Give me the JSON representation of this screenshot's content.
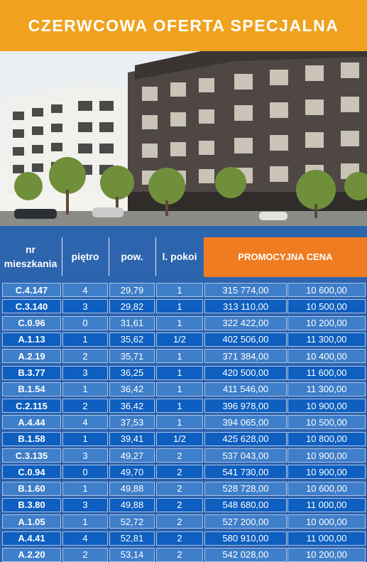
{
  "banner": {
    "title": "CZERWCOWA OFERTA SPECJALNA"
  },
  "colors": {
    "banner": "#f0a21e",
    "promo": "#f07c22",
    "table_bg": "#2a5ea8",
    "row_light": "#3f7ec9",
    "row_dark": "#0e5fbf"
  },
  "photo": {
    "description_icon": "building-photo"
  },
  "table": {
    "headers": {
      "nr_line1": "nr",
      "nr_line2": "mieszkania",
      "floor": "piętro",
      "area": "pow.",
      "rooms": "l. pokoi",
      "promo_price": "PROMOCYJNA CENA"
    },
    "rows": [
      {
        "nr": "C.4.147",
        "floor": "4",
        "area": "29,79",
        "rooms": "1",
        "price": "315 774,00",
        "price_m2": "10 600,00"
      },
      {
        "nr": "C.3.140",
        "floor": "3",
        "area": "29,82",
        "rooms": "1",
        "price": "313 110,00",
        "price_m2": "10 500,00"
      },
      {
        "nr": "C.0.96",
        "floor": "0",
        "area": "31,61",
        "rooms": "1",
        "price": "322 422,00",
        "price_m2": "10 200,00"
      },
      {
        "nr": "A.1.13",
        "floor": "1",
        "area": "35,62",
        "rooms": "1/2",
        "price": "402 506,00",
        "price_m2": "11 300,00"
      },
      {
        "nr": "A.2.19",
        "floor": "2",
        "area": "35,71",
        "rooms": "1",
        "price": "371 384,00",
        "price_m2": "10 400,00"
      },
      {
        "nr": "B.3.77",
        "floor": "3",
        "area": "36,25",
        "rooms": "1",
        "price": "420 500,00",
        "price_m2": "11 600,00"
      },
      {
        "nr": "B.1.54",
        "floor": "1",
        "area": "36,42",
        "rooms": "1",
        "price": "411 546,00",
        "price_m2": "11 300,00"
      },
      {
        "nr": "C.2.115",
        "floor": "2",
        "area": "36,42",
        "rooms": "1",
        "price": "396 978,00",
        "price_m2": "10 900,00"
      },
      {
        "nr": "A.4.44",
        "floor": "4",
        "area": "37,53",
        "rooms": "1",
        "price": "394 065,00",
        "price_m2": "10 500,00"
      },
      {
        "nr": "B.1.58",
        "floor": "1",
        "area": "39,41",
        "rooms": "1/2",
        "price": "425 628,00",
        "price_m2": "10 800,00"
      },
      {
        "nr": "C.3.135",
        "floor": "3",
        "area": "49,27",
        "rooms": "2",
        "price": "537 043,00",
        "price_m2": "10 900,00"
      },
      {
        "nr": "C.0.94",
        "floor": "0",
        "area": "49,70",
        "rooms": "2",
        "price": "541 730,00",
        "price_m2": "10 900,00"
      },
      {
        "nr": "B.1.60",
        "floor": "1",
        "area": "49,88",
        "rooms": "2",
        "price": "528 728,00",
        "price_m2": "10 600,00"
      },
      {
        "nr": "B.3.80",
        "floor": "3",
        "area": "49,88",
        "rooms": "2",
        "price": "548 680,00",
        "price_m2": "11 000,00"
      },
      {
        "nr": "A.1.05",
        "floor": "1",
        "area": "52,72",
        "rooms": "2",
        "price": "527 200,00",
        "price_m2": "10 000,00"
      },
      {
        "nr": "A.4.41",
        "floor": "4",
        "area": "52,81",
        "rooms": "2",
        "price": "580 910,00",
        "price_m2": "11 000,00"
      },
      {
        "nr": "A.2.20",
        "floor": "2",
        "area": "53,14",
        "rooms": "2",
        "price": "542 028,00",
        "price_m2": "10 200,00"
      }
    ]
  }
}
